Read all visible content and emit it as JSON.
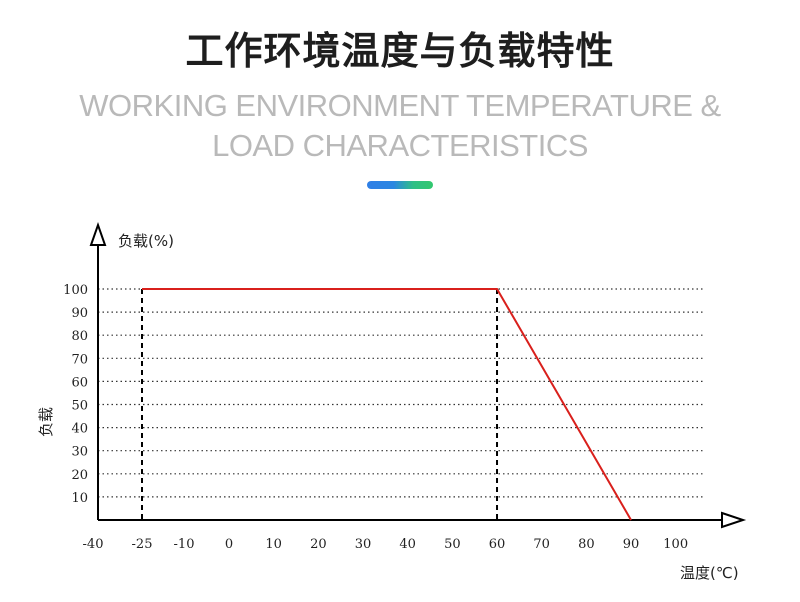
{
  "header": {
    "title_cn": "工作环境温度与负载特性",
    "title_en_line1": "WORKING ENVIRONMENT TEMPERATURE &",
    "title_en_line2": "LOAD CHARACTERISTICS"
  },
  "colors": {
    "accent_blue": "#2f7fe6",
    "accent_green": "#32c86e",
    "series_line": "#d9201c",
    "grid": "#333333"
  },
  "chart_data": {
    "type": "line",
    "y_axis_title": "负载(%)",
    "y_side_label": "负载",
    "x_axis_title": "温度(℃)",
    "x_ticks": [
      -40,
      -25,
      -10,
      0,
      10,
      20,
      30,
      40,
      50,
      60,
      70,
      80,
      90,
      100
    ],
    "y_ticks": [
      10,
      20,
      30,
      40,
      50,
      60,
      70,
      80,
      90,
      100
    ],
    "series": [
      {
        "x": [
          -25,
          60,
          90
        ],
        "y": [
          100,
          100,
          0
        ]
      }
    ],
    "vertical_markers": [
      -25,
      60
    ],
    "grid": "horizontal dotted",
    "ylim": [
      0,
      100
    ]
  }
}
